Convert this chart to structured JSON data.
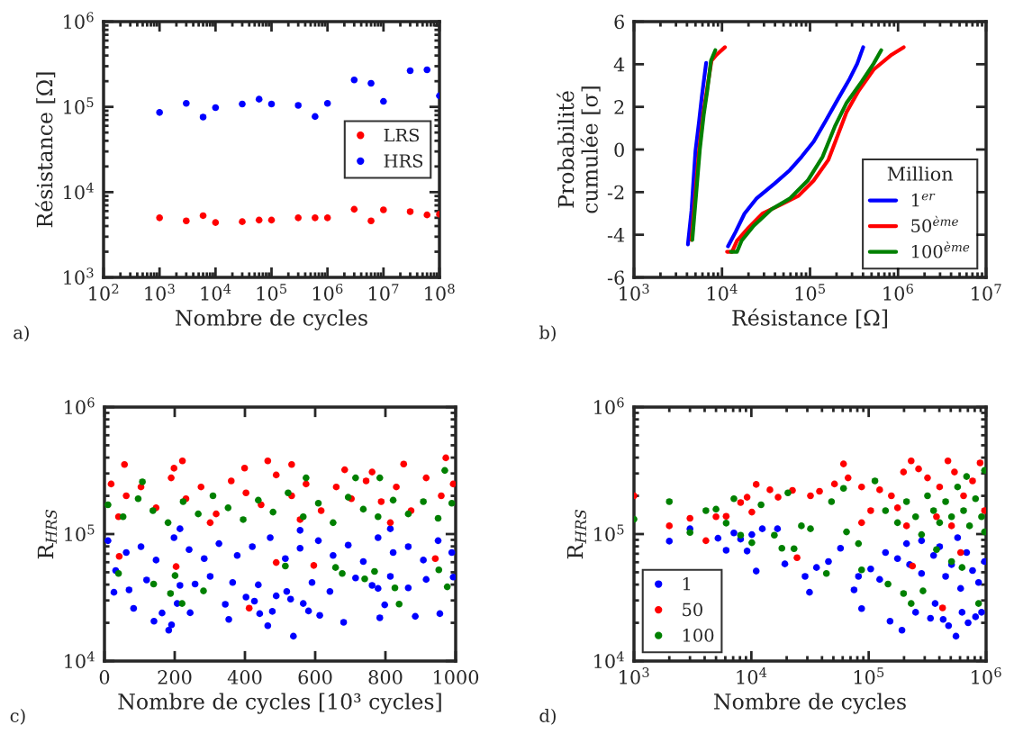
{
  "chart_data": [
    {
      "type": "scatter",
      "xlabel": "Nombre de cycles",
      "ylabel": "Résistance [Ω]",
      "log": "xy",
      "marker": "circle",
      "legend": "center right",
      "annotations": [
        "a)"
      ],
      "x": [
        1000,
        3000,
        6000,
        10000,
        30000,
        60000,
        100000,
        300000,
        600000,
        1000000,
        3000000,
        6000000,
        10000000,
        30000000,
        60000000,
        100000000
      ],
      "xlim": [
        100,
        100000000
      ],
      "xticks": [
        {
          "value": 100,
          "label": "10$^{2}$"
        },
        {
          "value": 1000,
          "label": "10$^{3}$"
        },
        {
          "value": 10000,
          "label": "10$^{4}$"
        },
        {
          "value": 100000,
          "label": "10$^{5}$"
        },
        {
          "value": 1000000,
          "label": "10$^{6}$"
        },
        {
          "value": 10000000,
          "label": "10$^{7}$"
        },
        {
          "value": 100000000,
          "label": "10$^{8}$"
        }
      ],
      "ylim": [
        1000,
        1000000
      ],
      "yticks": [
        {
          "value": 1000,
          "label": "10$^{3}$"
        },
        {
          "value": 10000,
          "label": "10$^{4}$"
        },
        {
          "value": 100000,
          "label": "10$^{5}$"
        },
        {
          "value": 1000000,
          "label": "10$^{6}$"
        }
      ],
      "series": [
        {
          "name": "LRS",
          "color": "#ff0000",
          "values": [
            5000,
            4600,
            5300,
            4400,
            4500,
            4700,
            4700,
            5000,
            5000,
            5000,
            6300,
            4600,
            6200,
            5900,
            5400,
            5500
          ]
        },
        {
          "name": "HRS",
          "color": "#0000ff",
          "values": [
            86000,
            110000,
            76000,
            98000,
            108000,
            123000,
            108000,
            104000,
            77000,
            110000,
            207000,
            189000,
            116000,
            266000,
            272000,
            135000
          ]
        }
      ]
    },
    {
      "type": "line",
      "xlabel": "Résistance [Ω]",
      "ylabel": "Probabilité\ncumulée [σ]",
      "log": "x",
      "line_style": "solid",
      "legend": "lower right",
      "legend_title": "Million",
      "annotations": [
        "b)"
      ],
      "xlim": [
        1000,
        10000000
      ],
      "xticks": [
        {
          "value": 1000,
          "label": "10$^{3}$"
        },
        {
          "value": 10000,
          "label": "10$^{4}$"
        },
        {
          "value": 100000,
          "label": "10$^{5}$"
        },
        {
          "value": 1000000,
          "label": "10$^{6}$"
        },
        {
          "value": 10000000,
          "label": "10$^{7}$"
        }
      ],
      "ylim": [
        -6,
        6
      ],
      "yticks": [
        -6,
        -4,
        -2,
        0,
        2,
        4,
        6
      ],
      "series": [
        {
          "color": "#0000ff",
          "x": [
            4100,
            4500,
            5000,
            5500,
            5900,
            6600
          ],
          "values": [
            -4.45,
            -2.87,
            -0.06,
            1.35,
            2.48,
            4.06
          ]
        },
        {
          "name": "1$^{er}$",
          "color": "#0000ff",
          "x": [
            11700,
            14300,
            18000,
            24500,
            39500,
            58900,
            80200,
            110000,
            151000,
            206000,
            282000,
            344000,
            402000
          ],
          "values": [
            -4.54,
            -3.86,
            -3.01,
            -2.31,
            -1.6,
            -0.97,
            -0.34,
            0.37,
            1.35,
            2.34,
            3.32,
            4.03,
            4.8
          ]
        },
        {
          "color": "#ff0000",
          "x": [
            4500,
            5000,
            5500,
            6100,
            6800,
            7600,
            8700,
            10800
          ],
          "values": [
            -4.24,
            -2.03,
            0,
            1.63,
            2.9,
            4.17,
            4.45,
            4.8
          ]
        },
        {
          "name": "50$^{ème}$",
          "color": "#ff0000",
          "x": [
            11400,
            13000,
            14800,
            19500,
            28800,
            46300,
            74100,
            110000,
            162000,
            206000,
            261000,
            357000,
            528000,
            847000,
            1160000
          ],
          "values": [
            -4.8,
            -4.8,
            -4.28,
            -3.72,
            -3.01,
            -2.59,
            -2.17,
            -1.46,
            -0.48,
            0.65,
            1.77,
            2.76,
            3.75,
            4.45,
            4.8
          ]
        },
        {
          "color": "#008000",
          "x": [
            4600,
            5100,
            5600,
            6200,
            6800,
            7500,
            8400
          ],
          "values": [
            -4.24,
            -2.03,
            0,
            1.63,
            2.76,
            4.17,
            4.66
          ]
        },
        {
          "name": "100$^{ème}$",
          "color": "#008000",
          "x": [
            12600,
            14800,
            16700,
            22900,
            36600,
            58600,
            94000,
            139000,
            191000,
            261000,
            386000,
            528000,
            644000
          ],
          "values": [
            -4.8,
            -4.8,
            -4.28,
            -3.58,
            -2.8,
            -2.31,
            -1.46,
            -0.34,
            1.07,
            2.2,
            3.18,
            4.03,
            4.66
          ]
        }
      ]
    },
    {
      "type": "scatter",
      "xlabel": "Nombre de cycles [10³ cycles]",
      "ylabel": "R$_{HRS}$",
      "log": "y",
      "marker": "circle",
      "annotations": [
        "c)"
      ],
      "xlim": [
        0,
        1000
      ],
      "xticks": [
        0,
        200,
        400,
        600,
        800,
        1000
      ],
      "ylim": [
        10000,
        1000000
      ],
      "yticks": [
        {
          "value": 10000,
          "label": "10$^{4}$"
        },
        {
          "value": 100000,
          "label": "10$^{5}$"
        },
        {
          "value": 1000000,
          "label": "10$^{6}$"
        }
      ],
      "series": [
        {
          "color": "#0000ff",
          "x": [
            27,
            83,
            141,
            183,
            191,
            164,
            207,
            244,
            344,
            354,
            403,
            427,
            442,
            465,
            478,
            489,
            530,
            538,
            566,
            581,
            613,
            681,
            784,
            798,
            885,
            955,
            779,
            865,
            642,
            32,
            70,
            120,
            215,
            258,
            301,
            365,
            438,
            519,
            591,
            715,
            762,
            814,
            916,
            993,
            10,
            62,
            104,
            147,
            198,
            241,
            284,
            326,
            378,
            421,
            472,
            515,
            557,
            609,
            651,
            694,
            737,
            779,
            822,
            865,
            908,
            950,
            989,
            215,
            557,
            814
          ],
          "values": [
            34800,
            26000,
            20600,
            17500,
            19300,
            23900,
            28400,
            24000,
            28000,
            21300,
            31900,
            29600,
            23600,
            19000,
            24600,
            32600,
            30700,
            15700,
            28400,
            24800,
            22900,
            20200,
            21900,
            27700,
            22500,
            23600,
            37300,
            37700,
            35300,
            51600,
            36300,
            43500,
            39400,
            40400,
            46400,
            41600,
            39800,
            35300,
            41600,
            45100,
            39400,
            46400,
            43900,
            45800,
            88700,
            71500,
            79600,
            62400,
            93700,
            75500,
            64100,
            84100,
            67800,
            79600,
            93700,
            64100,
            77400,
            88700,
            67800,
            81800,
            60800,
            93700,
            71500,
            79600,
            62400,
            88700,
            71500,
            110000,
            107000,
            110000
          ]
        },
        {
          "color": "#ff0000",
          "x": [
            57,
            222,
            465,
            533,
            684,
            852,
            972,
            198,
            399,
            762,
            412,
            42,
            204,
            489,
            596,
            942,
            19,
            62,
            104,
            147,
            190,
            232,
            275,
            318,
            361,
            403,
            446,
            489,
            533,
            574,
            617,
            660,
            703,
            745,
            788,
            831,
            873,
            916,
            959,
            993,
            40,
            301,
            557,
            814
          ],
          "values": [
            353000,
            377000,
            377000,
            353000,
            321000,
            356000,
            398000,
            330000,
            331000,
            308000,
            26100,
            66700,
            55400,
            59700,
            56600,
            64100,
            248000,
            200000,
            235000,
            161000,
            277000,
            190000,
            235000,
            144000,
            262000,
            211000,
            170000,
            292000,
            200000,
            248000,
            153000,
            235000,
            190000,
            262000,
            180000,
            235000,
            153000,
            277000,
            200000,
            248000,
            137000,
            123000,
            130000,
            123000
          ]
        },
        {
          "color": "#008000",
          "x": [
            40,
            140,
            188,
            221,
            282,
            201,
            515,
            677,
            741,
            839,
            827,
            976,
            952,
            769,
            658,
            969,
            108,
            574,
            715,
            784,
            10,
            53,
            96,
            138,
            181,
            224,
            267,
            309,
            352,
            395,
            438,
            480,
            523,
            566,
            609,
            651,
            694,
            737,
            779,
            822,
            865,
            908,
            950,
            989
          ],
          "values": [
            48900,
            40400,
            34000,
            28400,
            35700,
            47100,
            56000,
            48900,
            44400,
            28100,
            37700,
            38400,
            52200,
            50800,
            54500,
            317000,
            258000,
            277000,
            277000,
            277000,
            170000,
            137000,
            190000,
            153000,
            123000,
            180000,
            144000,
            200000,
            161000,
            130000,
            185000,
            149000,
            211000,
            137000,
            175000,
            123000,
            195000,
            157000,
            137000,
            185000,
            144000,
            180000,
            133000,
            175000
          ]
        }
      ]
    },
    {
      "type": "scatter",
      "xlabel": "Nombre de cycles",
      "ylabel": "R$_{HRS}$",
      "log": "xy",
      "marker": "circle",
      "legend": "lower left",
      "annotations": [
        "d)"
      ],
      "xlim": [
        1000,
        1000000
      ],
      "xticks": [
        {
          "value": 1000,
          "label": "10$^{3}$"
        },
        {
          "value": 10000,
          "label": "10$^{4}$"
        },
        {
          "value": 100000,
          "label": "10$^{5}$"
        },
        {
          "value": 1000000,
          "label": "10$^{6}$"
        }
      ],
      "ylim": [
        10000,
        1000000
      ],
      "yticks": [
        {
          "value": 10000,
          "label": "10$^{4}$"
        },
        {
          "value": 100000,
          "label": "10$^{5}$"
        },
        {
          "value": 1000000,
          "label": "10$^{6}$"
        }
      ],
      "series": [
        {
          "name": "1",
          "color": "#0000ff",
          "x": [
            2000,
            3000,
            5200,
            7100,
            8100,
            6100,
            9200,
            10100,
            11000,
            12400,
            19300,
            16700,
            28700,
            31300,
            35900,
            45400,
            57500,
            75000,
            87000,
            81800,
            104000,
            124000,
            152000,
            192000,
            251000,
            336000,
            368000,
            431000,
            479000,
            554000,
            624000,
            703000,
            813000,
            915000,
            139000,
            176000,
            223000,
            282000,
            357000,
            452000,
            508000,
            607000,
            682000,
            767000,
            863000,
            970000,
            282000,
            572000,
            402000,
            210000
          ],
          "values": [
            87900,
            110000,
            92700,
            102000,
            91200,
            74600,
            73500,
            99000,
            51100,
            110000,
            58200,
            110000,
            46400,
            34800,
            54500,
            60800,
            77400,
            36300,
            25900,
            46400,
            53100,
            43900,
            20600,
            17500,
            24200,
            21700,
            28400,
            21300,
            19000,
            15700,
            24200,
            20000,
            22300,
            24200,
            71500,
            64100,
            57500,
            48900,
            67800,
            46400,
            57500,
            37300,
            71500,
            51600,
            41600,
            60800,
            88700,
            93700,
            79600,
            84100
          ]
        },
        {
          "name": "50",
          "color": "#ff0000",
          "x": [
            1000,
            2000,
            3000,
            4100,
            5000,
            6100,
            8100,
            9200,
            10100,
            11000,
            14400,
            16900,
            22400,
            24500,
            31900,
            38100,
            51100,
            61000,
            66700,
            87000,
            124000,
            156000,
            198000,
            230000,
            266000,
            317000,
            402000,
            473000,
            538000,
            643000,
            767000,
            889000,
            970000,
            426000,
            236000,
            607000,
            378000,
            176000,
            210000,
            508000,
            104000,
            87000
          ],
          "values": [
            200000,
            116000,
            133000,
            88700,
            137000,
            138000,
            177000,
            195000,
            149000,
            246000,
            223000,
            195000,
            221000,
            65200,
            200000,
            217000,
            248000,
            357000,
            277000,
            235000,
            223000,
            200000,
            308000,
            377000,
            326000,
            277000,
            235000,
            377000,
            308000,
            200000,
            262000,
            363000,
            153000,
            26200,
            56000,
            71500,
            137000,
            161000,
            116000,
            116000,
            153000,
            123000
          ]
        },
        {
          "name": "100",
          "color": "#008000",
          "x": [
            1000,
            2000,
            3000,
            4100,
            5000,
            6100,
            7100,
            8100,
            10100,
            12100,
            15700,
            18200,
            20500,
            23100,
            26700,
            31900,
            43600,
            48200,
            61000,
            64700,
            81800,
            87000,
            113000,
            146000,
            198000,
            230000,
            290000,
            139000,
            176000,
            210000,
            251000,
            282000,
            317000,
            357000,
            402000,
            452000,
            508000,
            572000,
            643000,
            723000,
            813000,
            915000,
            970000,
            863000,
            624000,
            378000,
            508000,
            970000,
            682000
          ],
          "values": [
            131000,
            180000,
            103000,
            153000,
            157000,
            122000,
            190000,
            97900,
            85500,
            170000,
            97900,
            77400,
            211000,
            76700,
            116000,
            110000,
            48900,
            180000,
            229000,
            104000,
            84100,
            52200,
            262000,
            40400,
            34000,
            28400,
            35700,
            153000,
            123000,
            180000,
            137000,
            99000,
            200000,
            153000,
            123000,
            180000,
            137000,
            235000,
            153000,
            116000,
            190000,
            137000,
            104000,
            28400,
            54500,
            75500,
            60800,
            317000,
            284000
          ]
        }
      ]
    }
  ]
}
